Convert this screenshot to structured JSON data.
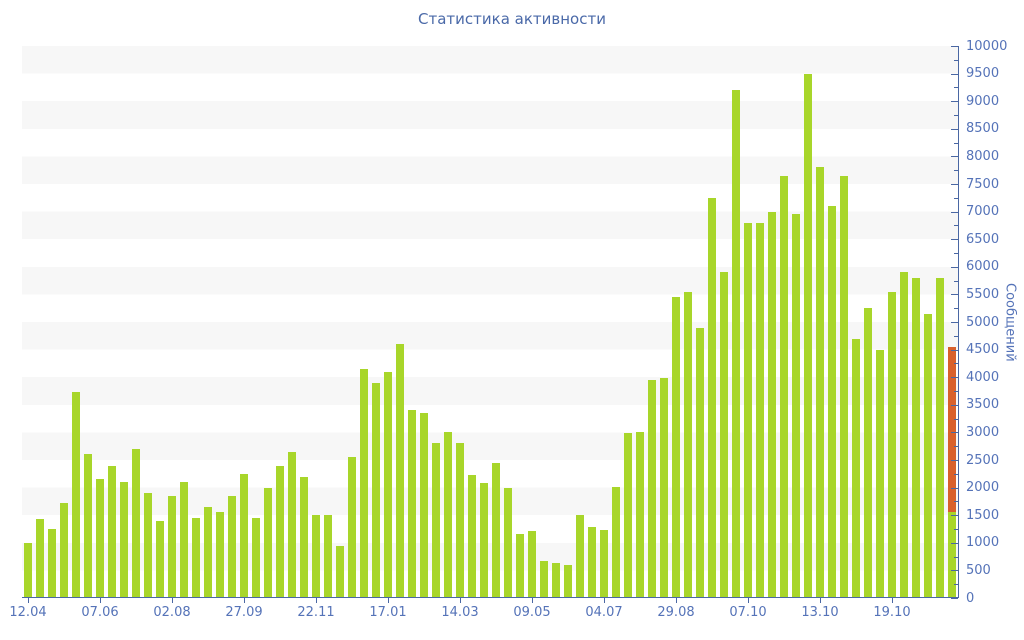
{
  "chart_data": {
    "type": "bar",
    "title": "Статистика активности",
    "ylabel": "Сообщений",
    "xlabel": "",
    "ylim": [
      0,
      10000
    ],
    "grid_bands": true,
    "legend": "none",
    "y_tick_step": 500,
    "y_minor_tick_step": 250,
    "y_tick_labels": [
      "0",
      "500",
      "1000",
      "1500",
      "2000",
      "2500",
      "3000",
      "3500",
      "4000",
      "4500",
      "5000",
      "5500",
      "6000",
      "6500",
      "7000",
      "7500",
      "8000",
      "8500",
      "9000",
      "9500",
      "10000"
    ],
    "x_tick_labels": [
      "12.04",
      "07.06",
      "02.08",
      "27.09",
      "22.11",
      "17.01",
      "14.03",
      "09.05",
      "04.07",
      "29.08",
      "07.10",
      "13.10",
      "19.10"
    ],
    "x_label_every_n_bars": 6,
    "values": [
      1000,
      1430,
      1250,
      1730,
      3730,
      2600,
      2150,
      2400,
      2100,
      2700,
      1900,
      1400,
      1850,
      2100,
      1450,
      1650,
      1550,
      1850,
      2250,
      1450,
      2000,
      2400,
      2650,
      2200,
      1500,
      1500,
      950,
      2550,
      4150,
      3900,
      4100,
      4600,
      3400,
      3360,
      2815,
      3015,
      2815,
      2230,
      2090,
      2440,
      2000,
      1160,
      1220,
      670,
      640,
      590,
      1500,
      1290,
      1230,
      2005,
      2985,
      3010,
      3950,
      3980,
      5450,
      5550,
      4900,
      7250,
      5900,
      9200,
      6800,
      6800,
      7000,
      7650,
      6950,
      9500,
      7800,
      7100,
      7650,
      4700,
      5250,
      4500,
      5550,
      5900,
      5800,
      5150,
      5800,
      4550
    ],
    "highlight_bar": {
      "index": 77,
      "total": 4550,
      "green_until": 1550
    },
    "colors": {
      "bar": "#a8d62a",
      "highlight": "#d9602c",
      "band": "#f7f7f7",
      "axis": "#4a67a3",
      "tick_label": "#5573b8",
      "title": "#4a69a8"
    }
  }
}
